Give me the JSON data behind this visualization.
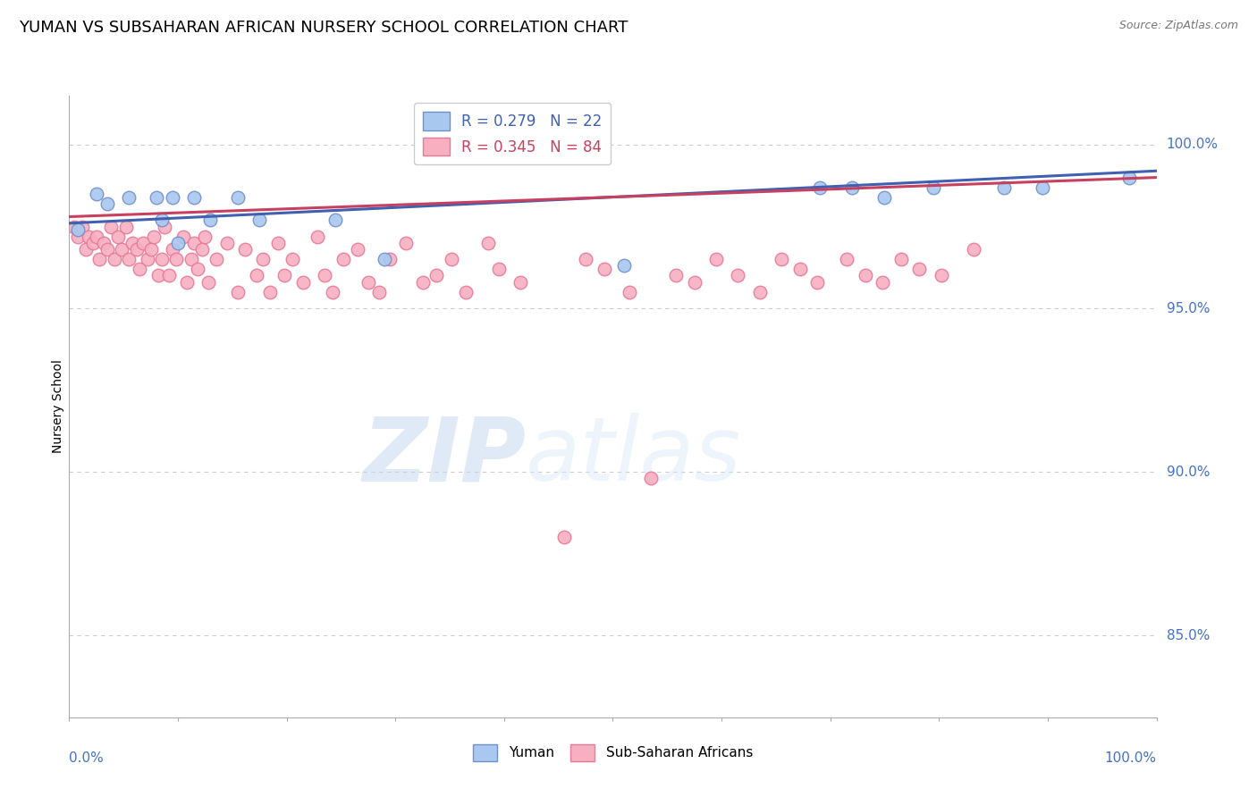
{
  "title": "YUMAN VS SUBSAHARAN AFRICAN NURSERY SCHOOL CORRELATION CHART",
  "source": "Source: ZipAtlas.com",
  "ylabel": "Nursery School",
  "ylabel_right_labels": [
    "100.0%",
    "95.0%",
    "90.0%",
    "85.0%"
  ],
  "ylabel_right_values": [
    1.0,
    0.95,
    0.9,
    0.85
  ],
  "ymin": 0.825,
  "ymax": 1.015,
  "xmin": 0.0,
  "xmax": 1.0,
  "legend_blue_R": "R = 0.279",
  "legend_blue_N": "N = 22",
  "legend_pink_R": "R = 0.345",
  "legend_pink_N": "N = 84",
  "legend_blue_label": "Yuman",
  "legend_pink_label": "Sub-Saharan Africans",
  "blue_color": "#a8c8f0",
  "pink_color": "#f8b0c0",
  "blue_edge": "#7090c8",
  "pink_edge": "#e87898",
  "trendline_blue": "#4060b0",
  "trendline_pink": "#c84060",
  "watermark_zip": "ZIP",
  "watermark_atlas": "atlas",
  "blue_points_x": [
    0.008,
    0.025,
    0.035,
    0.055,
    0.08,
    0.085,
    0.095,
    0.1,
    0.115,
    0.13,
    0.155,
    0.175,
    0.245,
    0.29,
    0.51,
    0.69,
    0.72,
    0.75,
    0.795,
    0.86,
    0.895,
    0.975
  ],
  "blue_points_y": [
    0.974,
    0.985,
    0.982,
    0.984,
    0.984,
    0.977,
    0.984,
    0.97,
    0.984,
    0.977,
    0.984,
    0.977,
    0.977,
    0.965,
    0.963,
    0.987,
    0.987,
    0.984,
    0.987,
    0.987,
    0.987,
    0.99
  ],
  "pink_points_x": [
    0.005,
    0.008,
    0.012,
    0.015,
    0.018,
    0.022,
    0.025,
    0.028,
    0.032,
    0.035,
    0.038,
    0.042,
    0.045,
    0.048,
    0.052,
    0.055,
    0.058,
    0.062,
    0.065,
    0.068,
    0.072,
    0.075,
    0.078,
    0.082,
    0.085,
    0.088,
    0.092,
    0.095,
    0.098,
    0.105,
    0.108,
    0.112,
    0.115,
    0.118,
    0.122,
    0.125,
    0.128,
    0.135,
    0.145,
    0.155,
    0.162,
    0.172,
    0.178,
    0.185,
    0.192,
    0.198,
    0.205,
    0.215,
    0.228,
    0.235,
    0.242,
    0.252,
    0.265,
    0.275,
    0.285,
    0.295,
    0.31,
    0.325,
    0.338,
    0.352,
    0.365,
    0.385,
    0.395,
    0.415,
    0.455,
    0.475,
    0.492,
    0.515,
    0.535,
    0.558,
    0.575,
    0.595,
    0.615,
    0.635,
    0.655,
    0.672,
    0.688,
    0.715,
    0.732,
    0.748,
    0.765,
    0.782,
    0.802,
    0.832
  ],
  "pink_points_y": [
    0.975,
    0.972,
    0.975,
    0.968,
    0.972,
    0.97,
    0.972,
    0.965,
    0.97,
    0.968,
    0.975,
    0.965,
    0.972,
    0.968,
    0.975,
    0.965,
    0.97,
    0.968,
    0.962,
    0.97,
    0.965,
    0.968,
    0.972,
    0.96,
    0.965,
    0.975,
    0.96,
    0.968,
    0.965,
    0.972,
    0.958,
    0.965,
    0.97,
    0.962,
    0.968,
    0.972,
    0.958,
    0.965,
    0.97,
    0.955,
    0.968,
    0.96,
    0.965,
    0.955,
    0.97,
    0.96,
    0.965,
    0.958,
    0.972,
    0.96,
    0.955,
    0.965,
    0.968,
    0.958,
    0.955,
    0.965,
    0.97,
    0.958,
    0.96,
    0.965,
    0.955,
    0.97,
    0.962,
    0.958,
    0.88,
    0.965,
    0.962,
    0.955,
    0.898,
    0.96,
    0.958,
    0.965,
    0.96,
    0.955,
    0.965,
    0.962,
    0.958,
    0.965,
    0.96,
    0.958,
    0.965,
    0.962,
    0.96,
    0.968
  ],
  "blue_trend_x": [
    0.0,
    1.0
  ],
  "blue_trend_y_start": 0.976,
  "blue_trend_y_end": 0.992,
  "pink_trend_x": [
    0.0,
    1.0
  ],
  "pink_trend_y_start": 0.978,
  "pink_trend_y_end": 0.99
}
